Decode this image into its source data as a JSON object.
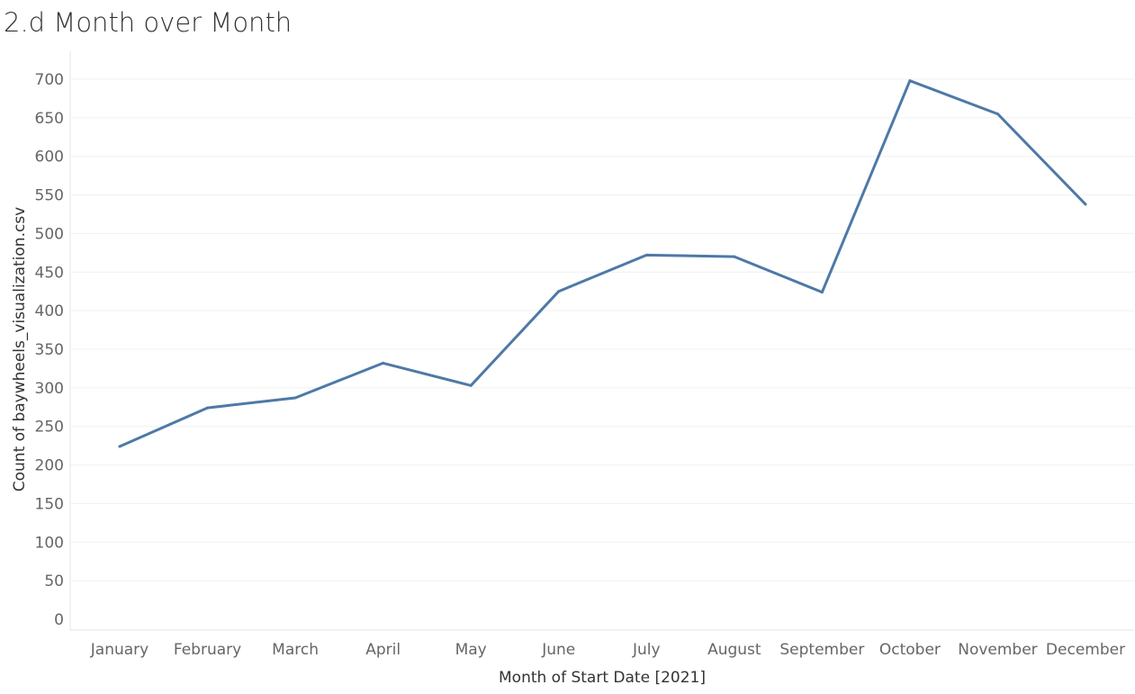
{
  "colors": {
    "line": "#4e79a7",
    "grid": "#f0f0f0",
    "axis": "#e6e6e6"
  },
  "chart_data": {
    "type": "line",
    "title": "2.d Month over Month",
    "xlabel": "Month of Start Date [2021]",
    "ylabel": "Count of baywheels_visualization.csv",
    "categories": [
      "January",
      "February",
      "March",
      "April",
      "May",
      "June",
      "July",
      "August",
      "September",
      "October",
      "November",
      "December"
    ],
    "values": [
      224,
      274,
      287,
      332,
      303,
      425,
      472,
      470,
      424,
      698,
      655,
      538
    ],
    "ylim": [
      0,
      730
    ],
    "yticks": [
      0,
      50,
      100,
      150,
      200,
      250,
      300,
      350,
      400,
      450,
      500,
      550,
      600,
      650,
      700
    ],
    "grid": true,
    "legend": "none"
  }
}
